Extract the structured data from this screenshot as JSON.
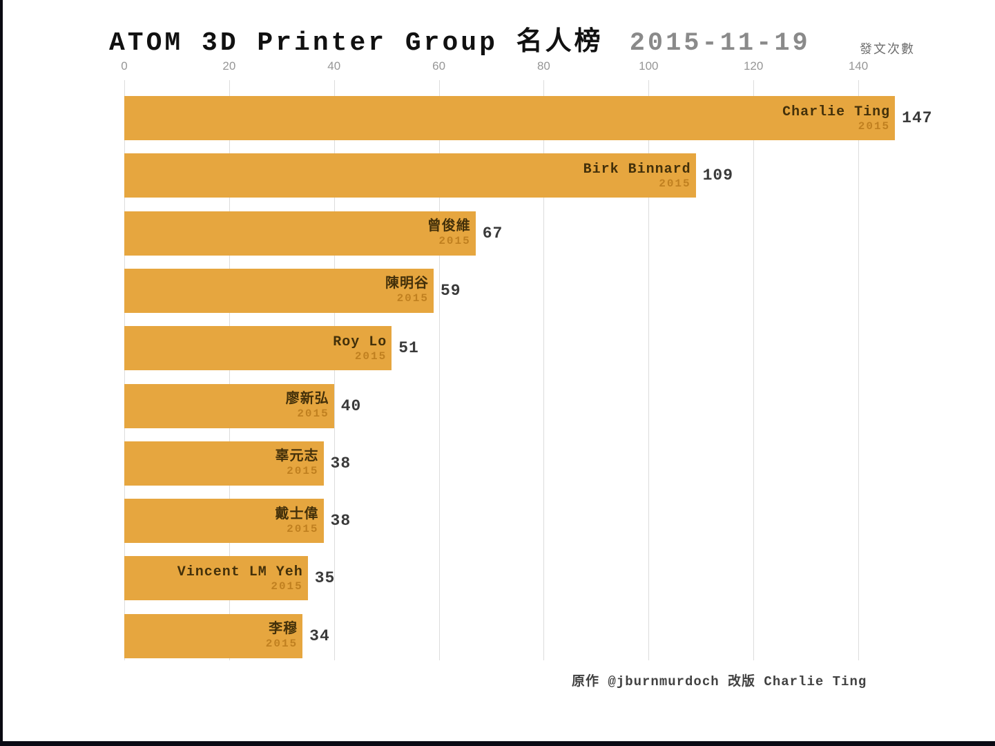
{
  "title": {
    "main": "ATOM 3D Printer Group 名人榜",
    "date": "2015-11-19"
  },
  "chart_data": {
    "type": "bar",
    "orientation": "horizontal",
    "title": "ATOM 3D Printer Group 名人榜",
    "subtitle_date": "2015-11-19",
    "xlabel": "發文次數",
    "xlim": [
      0,
      150
    ],
    "x_ticks": [
      0,
      20,
      40,
      60,
      80,
      100,
      120,
      140
    ],
    "grid": true,
    "legend": false,
    "bar_color": "#E6A63F",
    "year_label": "2015",
    "categories": [
      "Charlie Ting",
      "Birk Binnard",
      "曾俊維",
      "陳明谷",
      "Roy Lo",
      "廖新弘",
      "辜元志",
      "戴士偉",
      "Vincent LM Yeh",
      "李穆"
    ],
    "values": [
      147,
      109,
      67,
      59,
      51,
      40,
      38,
      38,
      35,
      34
    ]
  },
  "footer": {
    "credit": "原作 @jburnmurdoch  改版 Charlie Ting"
  }
}
